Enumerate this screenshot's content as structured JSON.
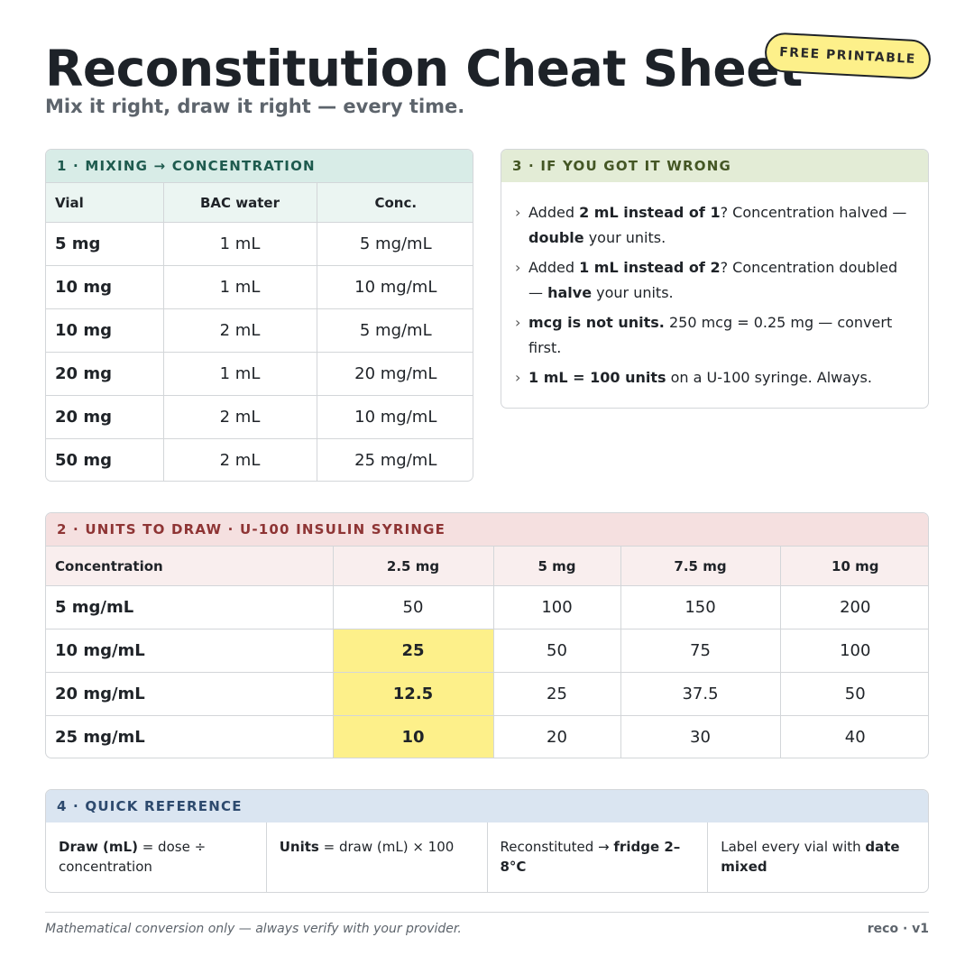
{
  "header": {
    "title": "Reconstitution Cheat Sheet",
    "subtitle": "Mix it right, draw it right — every time.",
    "badge": "FREE PRINTABLE"
  },
  "mixing": {
    "heading": "1 · MIXING → CONCENTRATION",
    "columns": [
      "Vial",
      "BAC water",
      "Conc."
    ],
    "rows": [
      [
        "5 mg",
        "1 mL",
        "5 mg/mL"
      ],
      [
        "10 mg",
        "1 mL",
        "10 mg/mL"
      ],
      [
        "10 mg",
        "2 mL",
        "5 mg/mL"
      ],
      [
        "20 mg",
        "1 mL",
        "20 mg/mL"
      ],
      [
        "20 mg",
        "2 mL",
        "10 mg/mL"
      ],
      [
        "50 mg",
        "2 mL",
        "25 mg/mL"
      ]
    ]
  },
  "wrong": {
    "heading": "3 · IF YOU GOT IT WRONG",
    "tips": [
      [
        {
          "t": "Added "
        },
        {
          "t": "2 mL instead of 1",
          "b": true
        },
        {
          "t": "? Concentration halved — "
        },
        {
          "t": "double",
          "b": true
        },
        {
          "t": " your units."
        }
      ],
      [
        {
          "t": "Added "
        },
        {
          "t": "1 mL instead of 2",
          "b": true
        },
        {
          "t": "? Concentration doubled — "
        },
        {
          "t": "halve",
          "b": true
        },
        {
          "t": " your units."
        }
      ],
      [
        {
          "t": "mcg is not units.",
          "b": true
        },
        {
          "t": " 250 mcg = 0.25 mg — convert first."
        }
      ],
      [
        {
          "t": "1 mL = 100 units",
          "b": true
        },
        {
          "t": " on a U-100 syringe. Always."
        }
      ]
    ]
  },
  "units": {
    "heading": "2 · UNITS TO DRAW · U-100 INSULIN SYRINGE",
    "columns": [
      "Concentration",
      "2.5 mg",
      "5 mg",
      "7.5 mg",
      "10 mg"
    ],
    "rows": [
      [
        "5 mg/mL",
        "50",
        "100",
        "150",
        "200"
      ],
      [
        "10 mg/mL",
        "25",
        "50",
        "75",
        "100"
      ],
      [
        "20 mg/mL",
        "12.5",
        "25",
        "37.5",
        "50"
      ],
      [
        "25 mg/mL",
        "10",
        "20",
        "30",
        "40"
      ]
    ],
    "highlight_color": "#fdf08a"
  },
  "reference": {
    "heading": "4 · QUICK REFERENCE",
    "cells": [
      [
        {
          "t": "Draw (mL)",
          "b": true
        },
        {
          "t": " = dose ÷ concentration"
        }
      ],
      [
        {
          "t": "Units",
          "b": true
        },
        {
          "t": " = draw (mL) × 100"
        }
      ],
      [
        {
          "t": "Reconstituted → "
        },
        {
          "t": "fridge 2–8°C",
          "b": true
        }
      ],
      [
        {
          "t": "Label every vial with "
        },
        {
          "t": "date mixed",
          "b": true
        }
      ]
    ]
  },
  "footer": {
    "disclaimer": "Mathematical conversion only — always verify with your provider.",
    "version": "reco · v1"
  }
}
